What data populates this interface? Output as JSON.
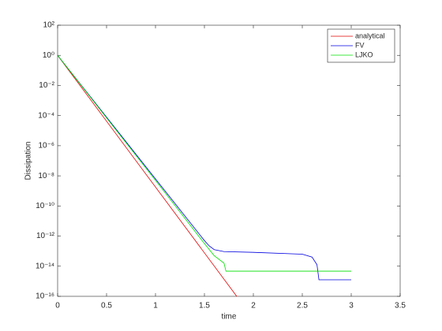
{
  "chart_data": {
    "type": "line",
    "xlabel": "time",
    "ylabel": "Dissipation",
    "xlim": [
      0,
      3.5
    ],
    "xticks": [
      0,
      0.5,
      1,
      1.5,
      2,
      2.5,
      3,
      3.5
    ],
    "ylim": [
      1e-16,
      100
    ],
    "log_y": true,
    "yticks": [
      {
        "value": 100,
        "label": "10²"
      },
      {
        "value": 1,
        "label": "10⁰"
      },
      {
        "value": 0.01,
        "label": "10⁻²"
      },
      {
        "value": 0.0001,
        "label": "10⁻⁴"
      },
      {
        "value": 1e-06,
        "label": "10⁻⁶"
      },
      {
        "value": 1e-08,
        "label": "10⁻⁸"
      },
      {
        "value": 1e-10,
        "label": "10⁻¹⁰"
      },
      {
        "value": 1e-12,
        "label": "10⁻¹²"
      },
      {
        "value": 1e-14,
        "label": "10⁻¹⁴"
      },
      {
        "value": 1e-16,
        "label": "10⁻¹⁶"
      }
    ],
    "legend": "northeast",
    "series": [
      {
        "name": "analytical",
        "color": "#e00000",
        "x": [
          0,
          1.83
        ],
        "values": [
          1,
          1e-16
        ]
      },
      {
        "name": "FV",
        "color": "#0000e0",
        "x": [
          0,
          1.0,
          1.5,
          1.55,
          1.6,
          1.7,
          2.0,
          2.5,
          2.6,
          2.65,
          2.67,
          3.0
        ],
        "values": [
          1,
          6.3e-09,
          5e-13,
          2.2e-13,
          1.26e-13,
          9.3e-14,
          8.3e-14,
          6.3e-14,
          4e-14,
          1.26e-14,
          1.26e-15,
          1.26e-15
        ]
      },
      {
        "name": "LJKO",
        "color": "#00e000",
        "x": [
          0,
          1.0,
          1.5,
          1.6,
          1.7,
          1.72,
          3.0
        ],
        "values": [
          1,
          5e-09,
          3.2e-13,
          5e-14,
          1.6e-14,
          4.7e-15,
          4.7e-15
        ]
      }
    ]
  }
}
